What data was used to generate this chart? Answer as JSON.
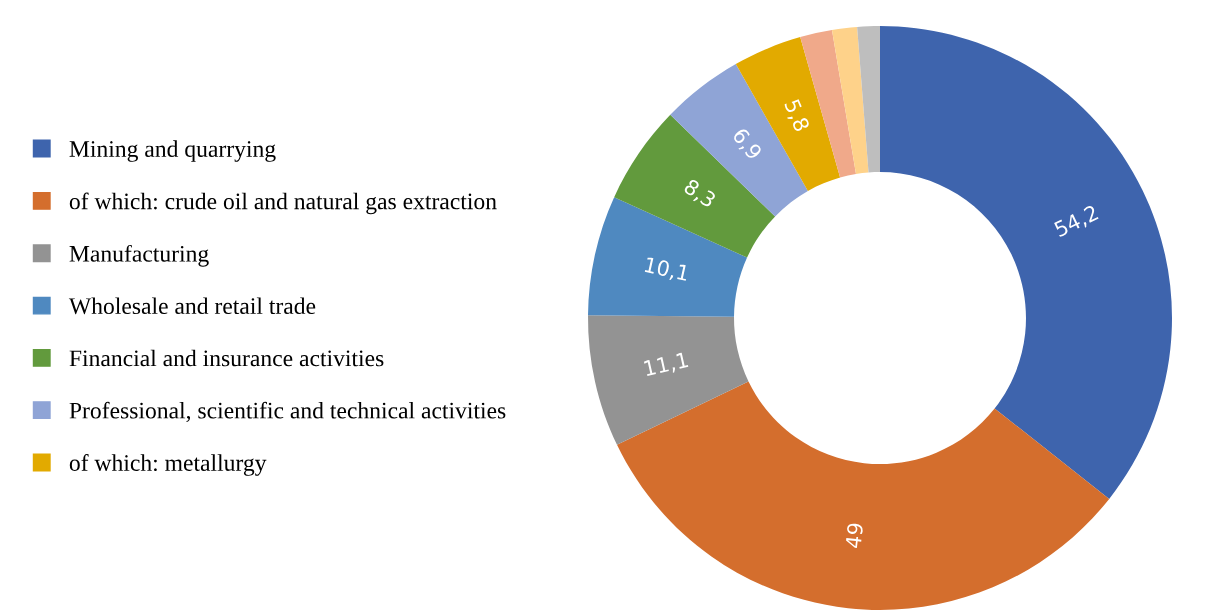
{
  "chart_data": {
    "type": "donut",
    "categories": [
      "Mining and quarrying",
      "of which: crude oil and natural gas extraction",
      "Manufacturing",
      "Wholesale and retail trade",
      "Financial and insurance activities",
      "Professional, scientific and technical activities",
      "of which: metallurgy",
      null,
      null,
      null
    ],
    "values": [
      54.2,
      49,
      11.1,
      10.1,
      8.3,
      6.9,
      5.8,
      2.7,
      2.1,
      1.9
    ],
    "colors": [
      "#3e64ad",
      "#d46e2d",
      "#939393",
      "#4f89c0",
      "#629a3d",
      "#8fa4d6",
      "#e2aa00",
      "#f0a98a",
      "#fed28a",
      "#bebebe"
    ],
    "value_labels": [
      "54,2",
      "49",
      "11,1",
      "10,1",
      "8,3",
      "6,9",
      "5,8",
      null,
      null,
      null
    ],
    "legend": "left"
  }
}
